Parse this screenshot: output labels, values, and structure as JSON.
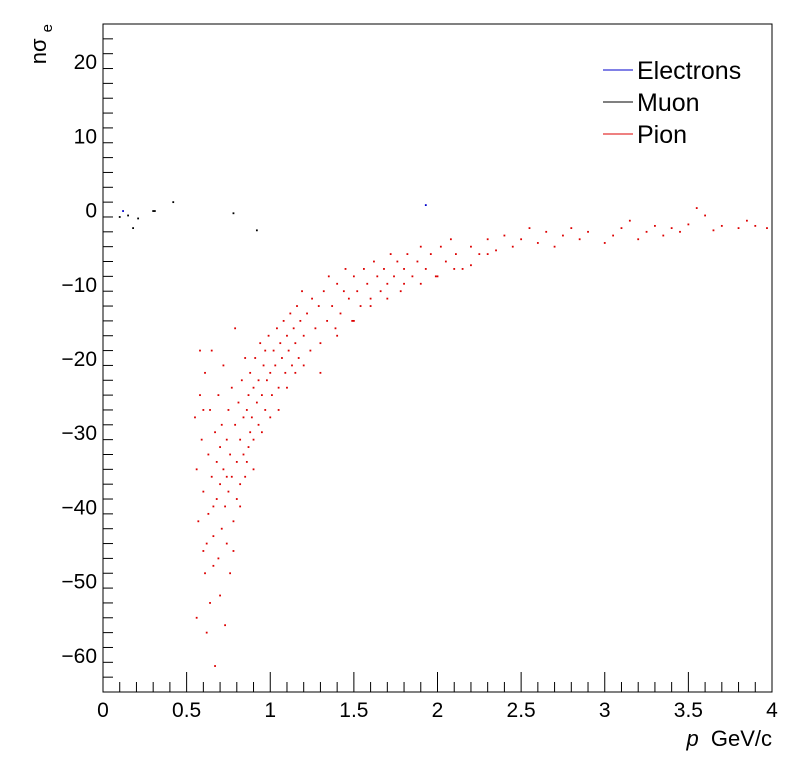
{
  "chart_data": {
    "type": "scatter",
    "xlabel": "p GeV/c",
    "xlabel_parts": {
      "var": "p",
      "unit": "GeV/c"
    },
    "ylabel": "nσe",
    "ylabel_parts": {
      "base": "nσ",
      "sub": "e"
    },
    "xlim": [
      0,
      4
    ],
    "ylim": [
      -65,
      25
    ],
    "x_ticks": [
      0,
      0.5,
      1,
      1.5,
      2,
      2.5,
      3,
      3.5,
      4
    ],
    "x_tick_labels": [
      "0",
      "0.5",
      "1",
      "1.5",
      "2",
      "2.5",
      "3",
      "3.5",
      "4"
    ],
    "y_ticks": [
      -60,
      -50,
      -40,
      -30,
      -20,
      -10,
      0,
      10,
      20
    ],
    "y_tick_labels": [
      "−60",
      "−50",
      "−40",
      "−30",
      "−20",
      "−10",
      "0",
      "10",
      "20"
    ],
    "grid": false,
    "legend_position": "top-right",
    "series": [
      {
        "name": "Electrons",
        "color": "#0000cc",
        "points": [
          [
            1.93,
            0.6
          ],
          [
            0.12,
            -0.2
          ]
        ]
      },
      {
        "name": "Muon",
        "color": "#000000",
        "points": [
          [
            0.92,
            -2.8
          ],
          [
            0.78,
            -0.5
          ],
          [
            0.42,
            1.0
          ],
          [
            0.31,
            -0.2
          ],
          [
            0.18,
            -2.5
          ],
          [
            0.1,
            -1.0
          ],
          [
            0.15,
            -0.8
          ],
          [
            0.21,
            -1.2
          ],
          [
            0.3,
            -0.2
          ]
        ]
      },
      {
        "name": "Pion",
        "color": "#dd0000",
        "points": [
          [
            0.55,
            -28
          ],
          [
            0.56,
            -35
          ],
          [
            0.57,
            -42
          ],
          [
            0.56,
            -55
          ],
          [
            0.58,
            -25
          ],
          [
            0.59,
            -31
          ],
          [
            0.6,
            -38
          ],
          [
            0.6,
            -46
          ],
          [
            0.61,
            -22
          ],
          [
            0.61,
            -49
          ],
          [
            0.62,
            -57
          ],
          [
            0.63,
            -33
          ],
          [
            0.63,
            -41
          ],
          [
            0.64,
            -27
          ],
          [
            0.64,
            -53
          ],
          [
            0.65,
            -19
          ],
          [
            0.65,
            -36
          ],
          [
            0.66,
            -44
          ],
          [
            0.66,
            -48
          ],
          [
            0.67,
            -30
          ],
          [
            0.67,
            -61.5
          ],
          [
            0.68,
            -39
          ],
          [
            0.68,
            -34
          ],
          [
            0.69,
            -25
          ],
          [
            0.69,
            -47
          ],
          [
            0.7,
            -52
          ],
          [
            0.7,
            -37
          ],
          [
            0.71,
            -43
          ],
          [
            0.71,
            -29
          ],
          [
            0.72,
            -21
          ],
          [
            0.72,
            -35
          ],
          [
            0.73,
            -56
          ],
          [
            0.73,
            -40
          ],
          [
            0.74,
            -31
          ],
          [
            0.74,
            -45
          ],
          [
            0.75,
            -27
          ],
          [
            0.75,
            -38
          ],
          [
            0.76,
            -33
          ],
          [
            0.76,
            -49
          ],
          [
            0.77,
            -24
          ],
          [
            0.77,
            -36
          ],
          [
            0.78,
            -42
          ],
          [
            0.79,
            -29
          ],
          [
            0.79,
            -16
          ],
          [
            0.8,
            -34
          ],
          [
            0.8,
            -39
          ],
          [
            0.81,
            -26
          ],
          [
            0.82,
            -31
          ],
          [
            0.82,
            -37
          ],
          [
            0.83,
            -23
          ],
          [
            0.84,
            -28
          ],
          [
            0.84,
            -33
          ],
          [
            0.85,
            -20
          ],
          [
            0.86,
            -27
          ],
          [
            0.86,
            -34
          ],
          [
            0.87,
            -25
          ],
          [
            0.88,
            -30
          ],
          [
            0.88,
            -22
          ],
          [
            0.89,
            -28
          ],
          [
            0.9,
            -24
          ],
          [
            0.9,
            -31
          ],
          [
            0.91,
            -20
          ],
          [
            0.92,
            -26
          ],
          [
            0.93,
            -23
          ],
          [
            0.93,
            -29
          ],
          [
            0.94,
            -18
          ],
          [
            0.95,
            -25
          ],
          [
            0.96,
            -21
          ],
          [
            0.97,
            -27
          ],
          [
            0.97,
            -19
          ],
          [
            0.98,
            -23
          ],
          [
            0.99,
            -17
          ],
          [
            1.0,
            -22
          ],
          [
            1.01,
            -25
          ],
          [
            1.02,
            -19
          ],
          [
            1.03,
            -21
          ],
          [
            1.04,
            -16
          ],
          [
            1.05,
            -24
          ],
          [
            1.06,
            -18
          ],
          [
            1.07,
            -20
          ],
          [
            1.08,
            -15
          ],
          [
            1.09,
            -22
          ],
          [
            1.1,
            -17
          ],
          [
            1.11,
            -19
          ],
          [
            1.12,
            -14
          ],
          [
            1.13,
            -21
          ],
          [
            1.14,
            -16
          ],
          [
            1.15,
            -18
          ],
          [
            1.16,
            -13
          ],
          [
            1.17,
            -20
          ],
          [
            1.18,
            -15
          ],
          [
            1.19,
            -11
          ],
          [
            1.2,
            -17
          ],
          [
            1.22,
            -14
          ],
          [
            1.24,
            -19
          ],
          [
            1.25,
            -12
          ],
          [
            1.27,
            -16
          ],
          [
            1.29,
            -13
          ],
          [
            1.3,
            -18
          ],
          [
            1.32,
            -11
          ],
          [
            1.34,
            -15
          ],
          [
            1.35,
            -9
          ],
          [
            1.37,
            -13
          ],
          [
            1.39,
            -16
          ],
          [
            1.4,
            -10
          ],
          [
            1.42,
            -14
          ],
          [
            1.44,
            -11
          ],
          [
            1.45,
            -8
          ],
          [
            1.47,
            -12
          ],
          [
            1.49,
            -15
          ],
          [
            1.5,
            -9
          ],
          [
            1.52,
            -11
          ],
          [
            1.54,
            -13
          ],
          [
            1.56,
            -8
          ],
          [
            1.58,
            -10
          ],
          [
            1.6,
            -12
          ],
          [
            1.62,
            -7
          ],
          [
            1.64,
            -9
          ],
          [
            1.66,
            -11
          ],
          [
            1.68,
            -8
          ],
          [
            1.7,
            -10
          ],
          [
            1.72,
            -6
          ],
          [
            1.74,
            -9
          ],
          [
            1.76,
            -7
          ],
          [
            1.78,
            -11
          ],
          [
            1.8,
            -8
          ],
          [
            1.82,
            -6
          ],
          [
            1.85,
            -9
          ],
          [
            1.88,
            -7
          ],
          [
            1.9,
            -5
          ],
          [
            1.93,
            -8
          ],
          [
            1.96,
            -6
          ],
          [
            1.99,
            -9
          ],
          [
            2.02,
            -5
          ],
          [
            2.05,
            -7
          ],
          [
            2.08,
            -4
          ],
          [
            2.11,
            -6
          ],
          [
            2.15,
            -8
          ],
          [
            2.2,
            -5
          ],
          [
            2.25,
            -6
          ],
          [
            2.3,
            -4
          ],
          [
            2.35,
            -5.5
          ],
          [
            2.4,
            -3.5
          ],
          [
            2.45,
            -5
          ],
          [
            2.5,
            -4
          ],
          [
            2.55,
            -2.5
          ],
          [
            2.6,
            -4.5
          ],
          [
            2.65,
            -3
          ],
          [
            2.7,
            -5
          ],
          [
            2.75,
            -3.5
          ],
          [
            2.8,
            -2.5
          ],
          [
            2.85,
            -4
          ],
          [
            2.9,
            -3
          ],
          [
            3.0,
            -4.5
          ],
          [
            3.05,
            -3.5
          ],
          [
            3.1,
            -2.5
          ],
          [
            3.15,
            -1.5
          ],
          [
            3.2,
            -4
          ],
          [
            3.25,
            -3
          ],
          [
            3.3,
            -2.2
          ],
          [
            3.35,
            -3.5
          ],
          [
            3.4,
            -2.5
          ],
          [
            3.45,
            -3.0
          ],
          [
            3.5,
            -2.0
          ],
          [
            3.55,
            0.2
          ],
          [
            3.6,
            -0.8
          ],
          [
            3.65,
            -2.8
          ],
          [
            3.7,
            -2.2
          ],
          [
            3.8,
            -2.5
          ],
          [
            3.85,
            -1.5
          ],
          [
            3.9,
            -2.2
          ],
          [
            3.97,
            -2.5
          ],
          [
            0.58,
            -19
          ],
          [
            0.6,
            -27
          ],
          [
            0.62,
            -45
          ],
          [
            0.66,
            -40
          ],
          [
            0.7,
            -32
          ],
          [
            0.74,
            -36
          ],
          [
            0.78,
            -46
          ],
          [
            0.82,
            -40
          ],
          [
            0.85,
            -36
          ],
          [
            0.87,
            -32
          ],
          [
            0.9,
            -35
          ],
          [
            0.95,
            -30
          ],
          [
            1.0,
            -28
          ],
          [
            1.05,
            -27
          ],
          [
            1.1,
            -24
          ],
          [
            1.15,
            -22
          ],
          [
            1.2,
            -21
          ],
          [
            1.3,
            -22
          ],
          [
            1.4,
            -17
          ],
          [
            1.5,
            -15
          ],
          [
            1.6,
            -13
          ],
          [
            1.7,
            -12
          ],
          [
            1.8,
            -10
          ],
          [
            1.9,
            -10
          ],
          [
            2.0,
            -9
          ],
          [
            2.1,
            -8
          ],
          [
            2.2,
            -7.5
          ],
          [
            2.3,
            -6
          ]
        ]
      }
    ]
  }
}
